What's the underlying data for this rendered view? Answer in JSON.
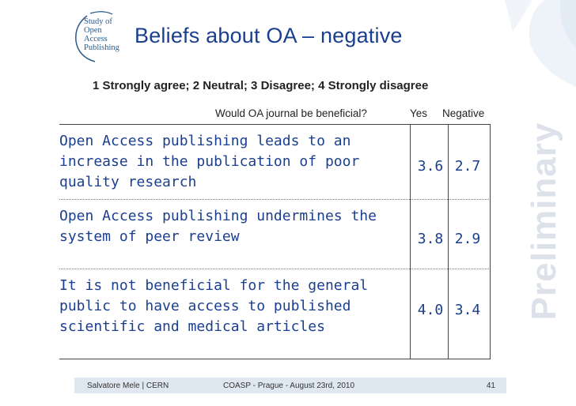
{
  "logo": {
    "lines": [
      "Study of",
      "Open",
      "Access",
      "Publishing"
    ]
  },
  "title": "Beliefs about OA – negative",
  "scale_legend": "1 Strongly agree; 2 Neutral; 3 Disagree; 4 Strongly disagree",
  "columns": {
    "question": "Would OA journal be beneficial?",
    "yes": "Yes",
    "negative": "Negative"
  },
  "rows": [
    {
      "statement": "Open Access publishing leads to an increase in the publication of poor quality research",
      "yes": "3.6",
      "negative": "2.7"
    },
    {
      "statement": "Open Access publishing undermines the system of peer review",
      "yes": "3.8",
      "negative": "2.9"
    },
    {
      "statement": "It is not beneficial for the general public to have access to published scientific and medical articles",
      "yes": "4.0",
      "negative": "3.4"
    }
  ],
  "watermark": "Preliminary",
  "footer": {
    "author": "Salvatore Mele | CERN",
    "event": "COASP - Prague - August 23rd, 2010",
    "page": "41"
  },
  "colors": {
    "title": "#1b3f8f",
    "footer_bg": "#dfe7f1",
    "watermark": "#dde2ea"
  }
}
